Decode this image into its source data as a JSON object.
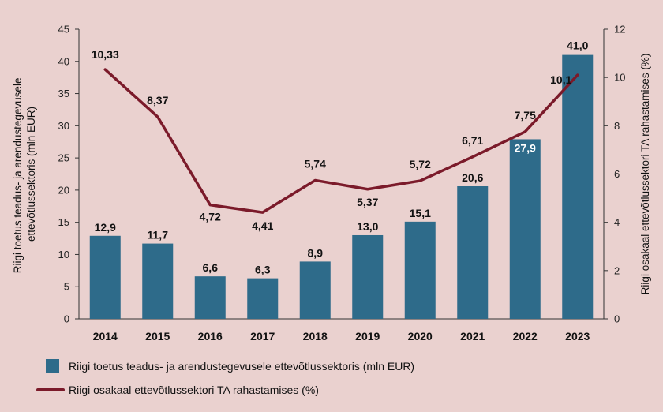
{
  "chart_data": {
    "type": "bar",
    "categories": [
      "2014",
      "2015",
      "2016",
      "2017",
      "2018",
      "2019",
      "2020",
      "2021",
      "2022",
      "2023"
    ],
    "series": [
      {
        "name": "Riigi toetus teadus- ja arendustegevusele ettevõtlussektoris (mln EUR)",
        "chart_type": "bar",
        "axis": "left",
        "color": "#2e6b8a",
        "values": [
          12.9,
          11.7,
          6.6,
          6.3,
          8.9,
          13.0,
          15.1,
          20.6,
          27.9,
          41.0
        ],
        "labels": [
          "12,9",
          "11,7",
          "6,6",
          "6,3",
          "8,9",
          "13,0",
          "15,1",
          "20,6",
          "27,9",
          "41,0"
        ]
      },
      {
        "name": "Riigi osakaal ettevõtlussektori TA rahastamises (%)",
        "chart_type": "line",
        "axis": "right",
        "color": "#7b1a2a",
        "values": [
          10.33,
          8.37,
          4.72,
          4.41,
          5.74,
          5.37,
          5.72,
          6.71,
          7.75,
          10.1
        ],
        "labels": [
          "10,33",
          "8,37",
          "4,72",
          "4,41",
          "5,74",
          "5,37",
          "5,72",
          "6,71",
          "7,75",
          "10,1"
        ]
      }
    ],
    "y_left": {
      "label": "Riigi toetus teadus- ja arendustegevusele ettevõtlussektoris (mln EUR)",
      "ylim": [
        0,
        45
      ],
      "ticks": [
        "0",
        "5",
        "10",
        "15",
        "20",
        "25",
        "30",
        "35",
        "40",
        "45"
      ]
    },
    "y_right": {
      "label": "Riigi osakaal ettevõtlussektori TA rahastamises (%)",
      "ylim": [
        0,
        12
      ],
      "ticks": [
        "0",
        "2",
        "4",
        "6",
        "8",
        "10",
        "12"
      ]
    },
    "grid": false,
    "legend_position": "bottom-left"
  }
}
